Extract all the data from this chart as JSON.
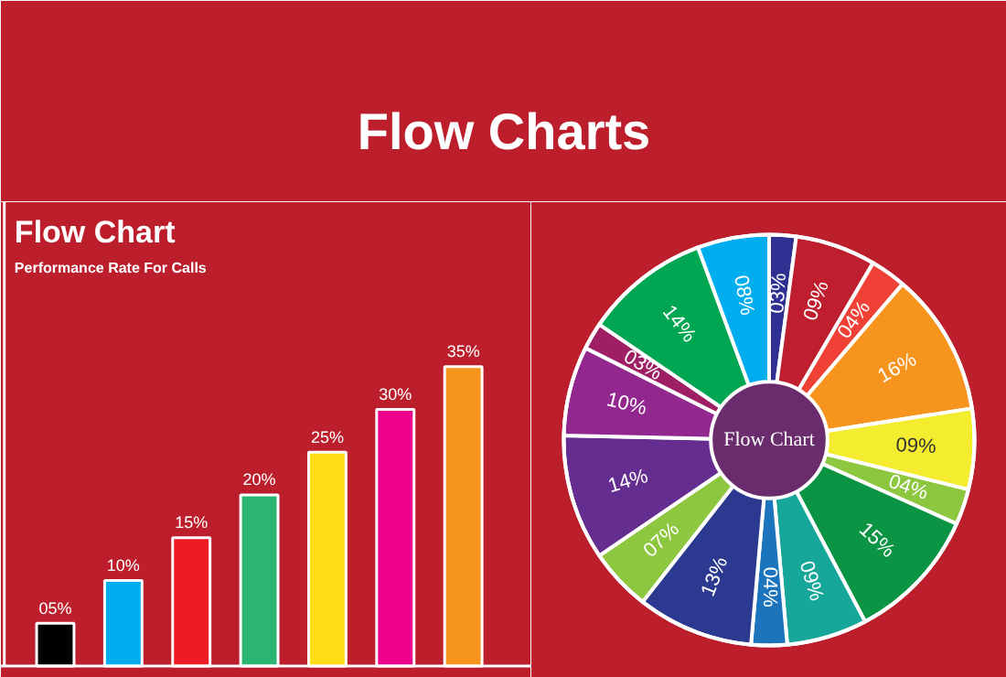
{
  "chart_data": [
    {
      "type": "other",
      "title": "Flow Charts"
    },
    {
      "type": "bar",
      "title": "Flow Chart",
      "subtitle": "Performance Rate For Calls",
      "categories": [
        null,
        null,
        null,
        null,
        null,
        null,
        null
      ],
      "values": [
        5,
        10,
        15,
        20,
        25,
        30,
        35
      ],
      "value_labels": [
        "05%",
        "10%",
        "15%",
        "20%",
        "25%",
        "30%",
        "35%"
      ],
      "colors": [
        "#000000",
        "#00aeef",
        "#ed1c24",
        "#2bb573",
        "#ffde17",
        "#ec008c",
        "#f7941d"
      ]
    },
    {
      "type": "donut",
      "title": "Flow Chart",
      "categories": [
        null,
        null,
        null,
        null,
        null,
        null,
        null,
        null,
        null,
        null,
        null,
        null,
        null,
        null,
        null,
        null
      ],
      "values": [
        3,
        9,
        4,
        16,
        9,
        4,
        15,
        9,
        4,
        13,
        7,
        14,
        10,
        3,
        14,
        8
      ],
      "value_labels": [
        "03%",
        "09%",
        "04%",
        "16%",
        "09%",
        "04%",
        "15%",
        "09%",
        "04%",
        "13%",
        "07%",
        "14%",
        "10%",
        "03%",
        "14%",
        "08%"
      ],
      "colors": [
        "#2e3192",
        "#be1e2d",
        "#ef4136",
        "#f7941d",
        "#f4ec2f",
        "#8dc63f",
        "#0a9444",
        "#17a79a",
        "#1c75bc",
        "#2b3990",
        "#8dc63f",
        "#662d91",
        "#92278f",
        "#9e1f63",
        "#00a651",
        "#00aeef"
      ]
    }
  ]
}
